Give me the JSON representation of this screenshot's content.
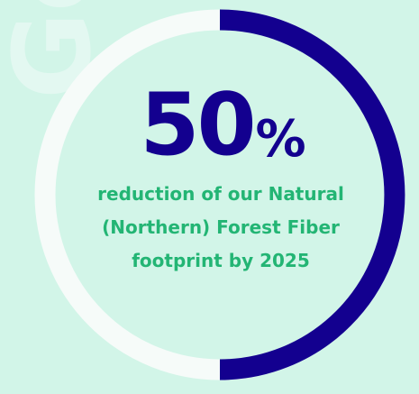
{
  "stat": {
    "value": "50",
    "unit": "%",
    "progress_percent": 50,
    "description": "reduction of our Natural (Northern) Forest Fiber footprint by 2025"
  },
  "watermark": {
    "text": "Goals"
  },
  "colors": {
    "background": "#d2f5e8",
    "ring_track": "#f6fbf9",
    "ring_progress": "#13008f",
    "value_text": "#13008f",
    "caption_text": "#23b574",
    "watermark_text": "#e3f8f1"
  }
}
